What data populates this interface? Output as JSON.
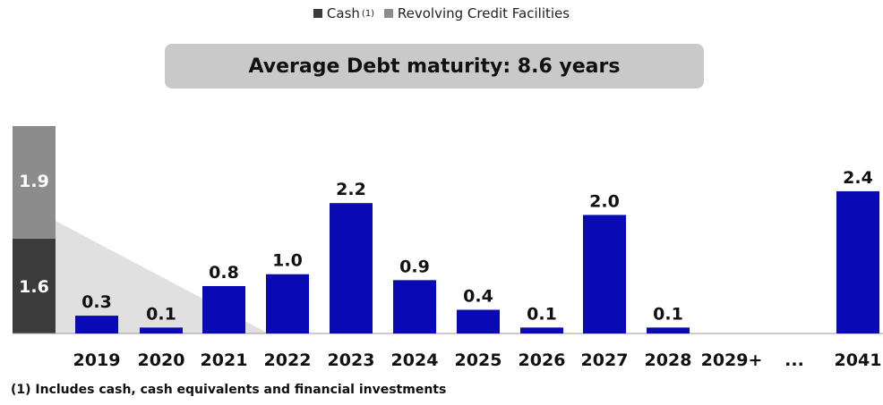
{
  "legend": [
    {
      "label": "Cash",
      "sup": "(1)",
      "color": "#3b3b3b"
    },
    {
      "label": "Revolving Credit Facilities",
      "color": "#8c8c8c"
    }
  ],
  "banner": "Average Debt maturity: 8.6 years",
  "footnote": "(1) Includes cash, cash equivalents and financial investments",
  "chart_data": {
    "type": "bar",
    "liquidity": {
      "cash": 1.6,
      "rcf": 1.9,
      "cash_label": "1.6",
      "rcf_label": "1.9",
      "cash_color": "#3b3b3b",
      "rcf_color": "#8c8c8c"
    },
    "categories": [
      "2019",
      "2020",
      "2021",
      "2022",
      "2023",
      "2024",
      "2025",
      "2026",
      "2027",
      "2028",
      "2029+",
      "...",
      "2041"
    ],
    "values": [
      0.3,
      0.1,
      0.8,
      1.0,
      2.2,
      0.9,
      0.4,
      0.1,
      2.0,
      0.1,
      null,
      null,
      2.4
    ],
    "labels": [
      "0.3",
      "0.1",
      "0.8",
      "1.0",
      "2.2",
      "0.9",
      "0.4",
      "0.1",
      "2.0",
      "0.1",
      "",
      "",
      "2.4"
    ],
    "bar_color": "#0a0ab4",
    "ylim": [
      0,
      3.5
    ],
    "grid": false
  }
}
